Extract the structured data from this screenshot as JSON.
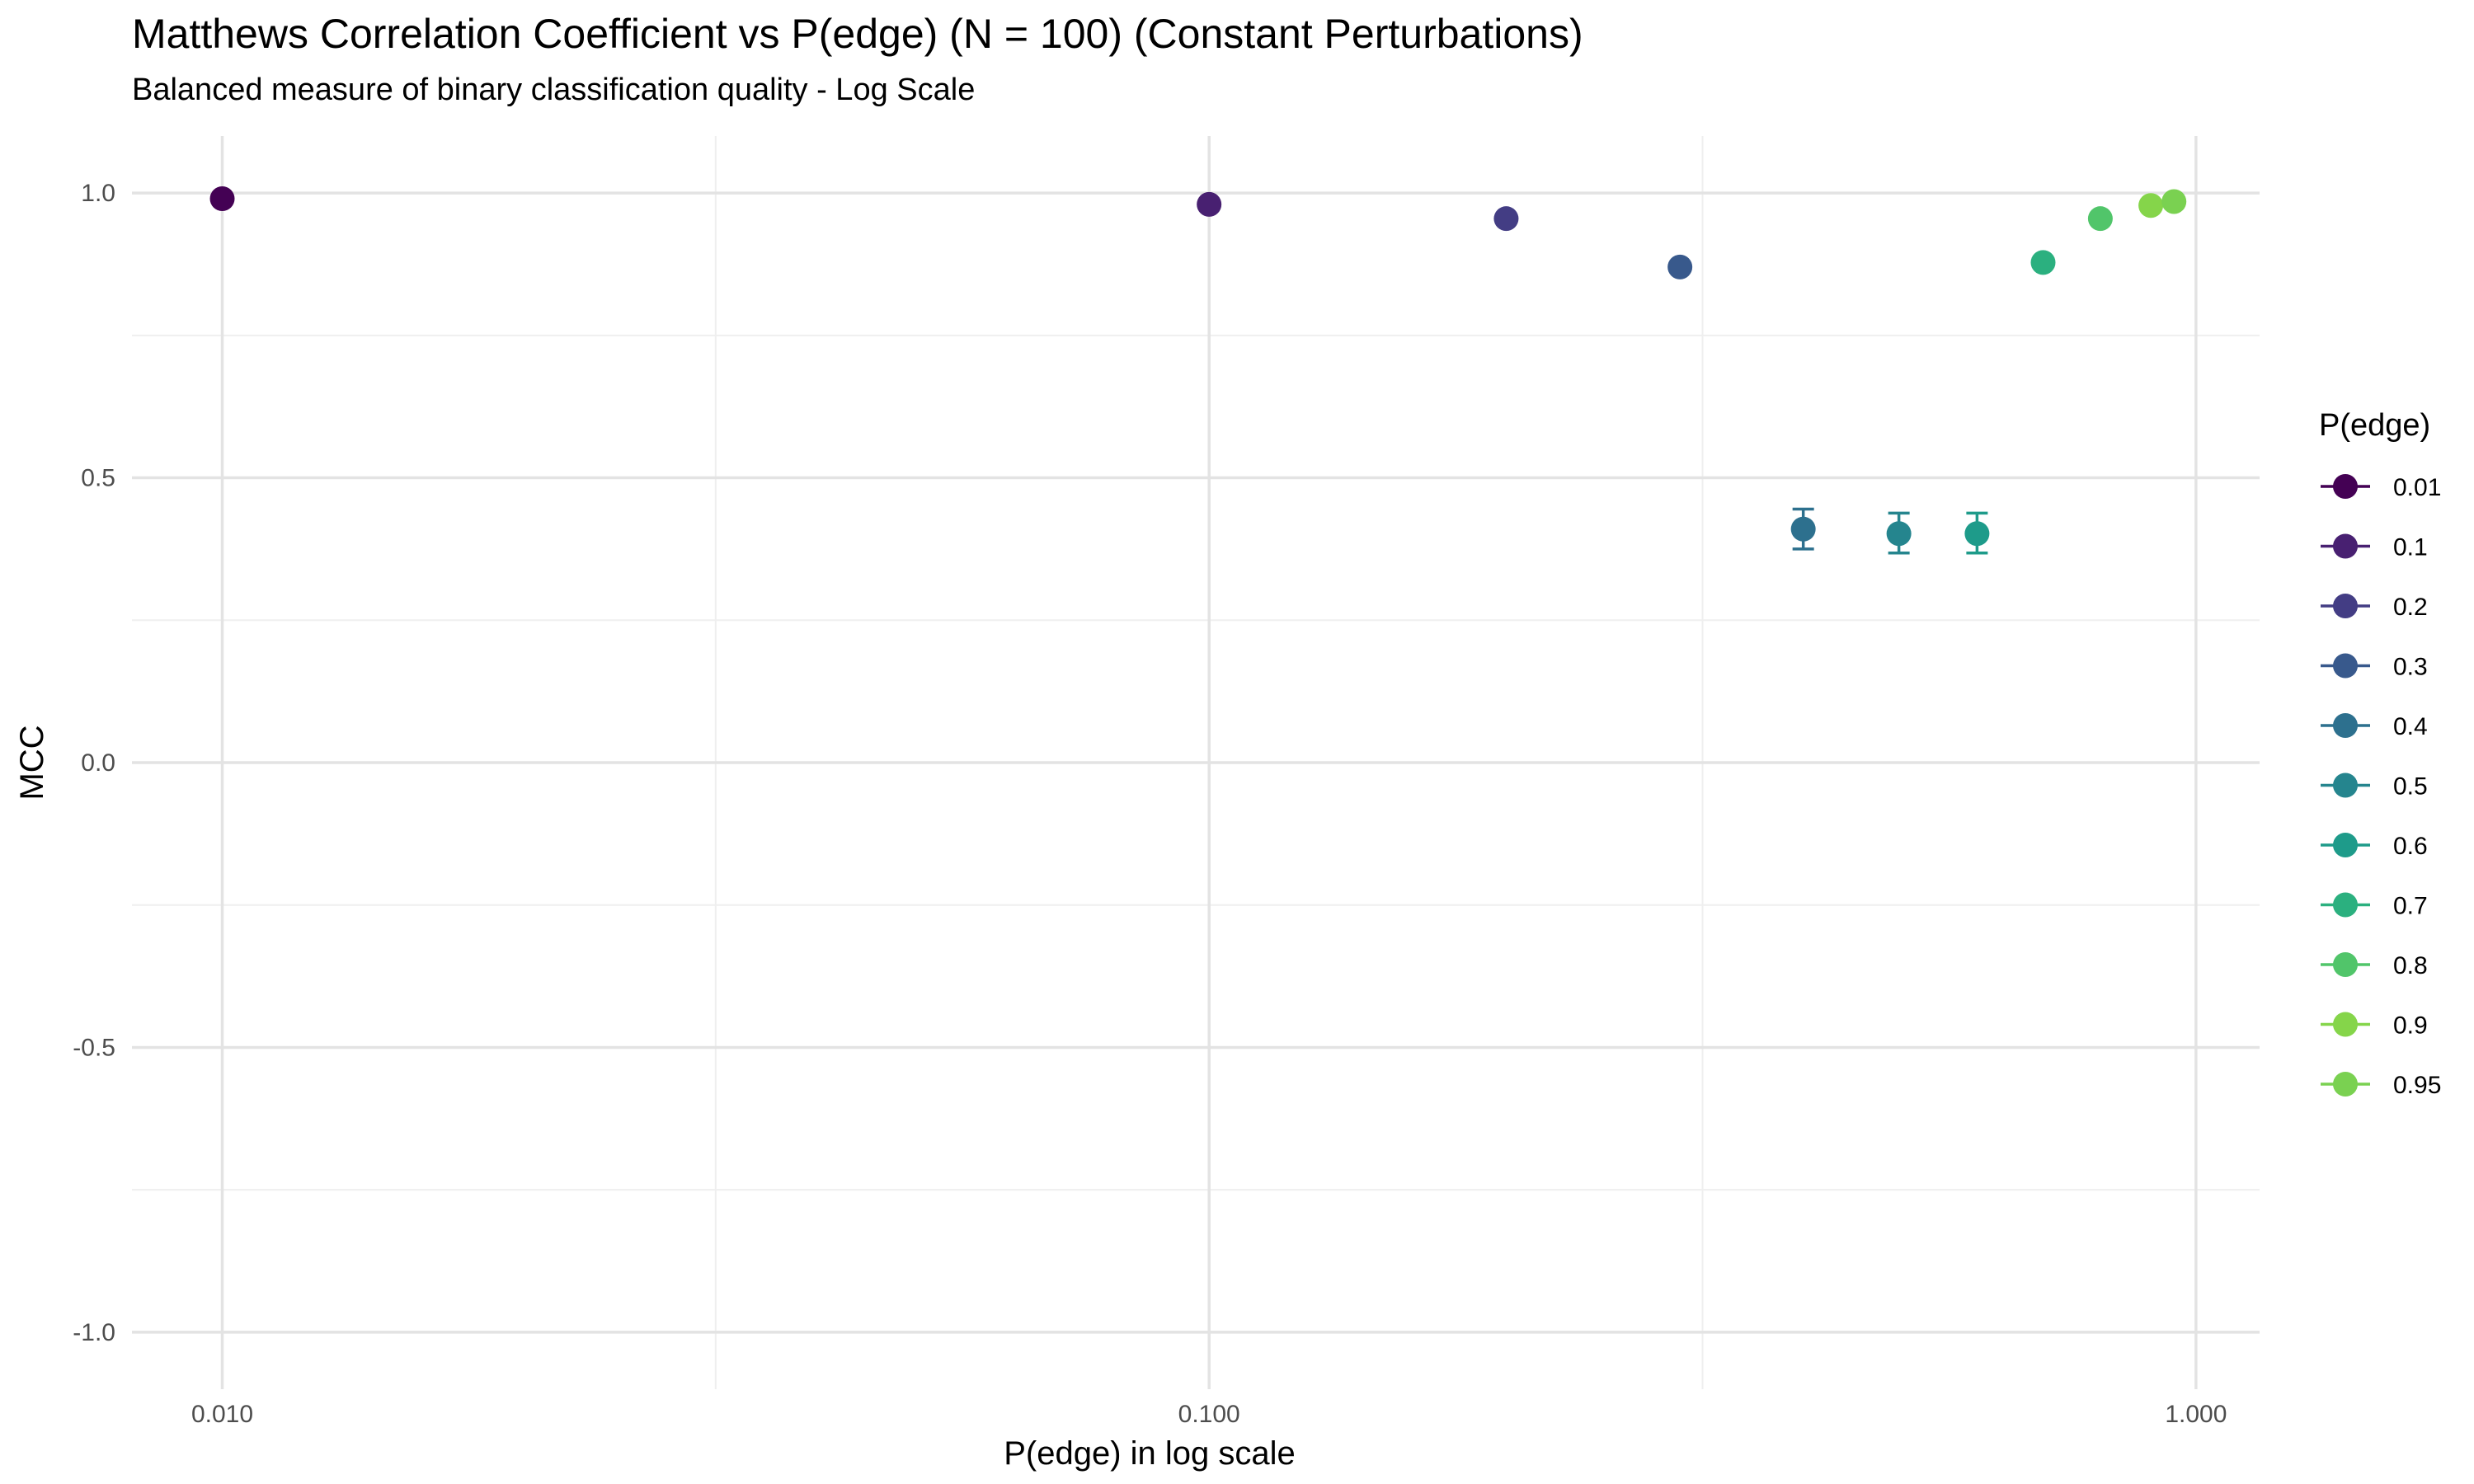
{
  "chart_data": {
    "type": "scatter",
    "title": "Matthews Correlation Coefficient vs P(edge) (N = 100) (Constant Perturbations)",
    "subtitle": "Balanced measure of binary classification quality - Log Scale",
    "xlabel": "P(edge) in log scale",
    "ylabel": "MCC",
    "x_scale": "log10",
    "xlim": [
      0.0081,
      1.16
    ],
    "ylim": [
      -1.1,
      1.1
    ],
    "x_ticks": [
      {
        "value": 0.01,
        "label": "0.010"
      },
      {
        "value": 0.1,
        "label": "0.100"
      },
      {
        "value": 1.0,
        "label": "1.000"
      }
    ],
    "y_ticks": [
      {
        "value": 1.0,
        "label": "1.0"
      },
      {
        "value": 0.5,
        "label": "0.5"
      },
      {
        "value": 0.0,
        "label": "0.0"
      },
      {
        "value": -0.5,
        "label": "-0.5"
      },
      {
        "value": -1.0,
        "label": "-1.0"
      }
    ],
    "grid": true,
    "legend": {
      "title": "P(edge)",
      "position": "right"
    },
    "series": [
      {
        "name": "0.01",
        "color": "#440154",
        "x": 0.01,
        "y": 0.99,
        "err_low": 0.99,
        "err_high": 0.99
      },
      {
        "name": "0.1",
        "color": "#482071",
        "x": 0.1,
        "y": 0.98,
        "err_low": 0.98,
        "err_high": 0.98
      },
      {
        "name": "0.2",
        "color": "#433D84",
        "x": 0.2,
        "y": 0.955,
        "err_low": 0.955,
        "err_high": 0.955
      },
      {
        "name": "0.3",
        "color": "#38598C",
        "x": 0.3,
        "y": 0.87,
        "err_low": 0.87,
        "err_high": 0.87
      },
      {
        "name": "0.4",
        "color": "#2D708E",
        "x": 0.4,
        "y": 0.41,
        "err_low": 0.375,
        "err_high": 0.445
      },
      {
        "name": "0.5",
        "color": "#25858E",
        "x": 0.5,
        "y": 0.402,
        "err_low": 0.368,
        "err_high": 0.438
      },
      {
        "name": "0.6",
        "color": "#1E9B8A",
        "x": 0.6,
        "y": 0.402,
        "err_low": 0.368,
        "err_high": 0.438
      },
      {
        "name": "0.7",
        "color": "#2BB07F",
        "x": 0.7,
        "y": 0.878,
        "err_low": 0.878,
        "err_high": 0.878
      },
      {
        "name": "0.8",
        "color": "#51C56A",
        "x": 0.8,
        "y": 0.955,
        "err_low": 0.955,
        "err_high": 0.955
      },
      {
        "name": "0.9",
        "color": "#85D54A",
        "x": 0.9,
        "y": 0.978,
        "err_low": 0.978,
        "err_high": 0.978
      },
      {
        "name": "0.95",
        "color": "#7AD151",
        "x": 0.95,
        "y": 0.985,
        "err_low": 0.985,
        "err_high": 0.985
      }
    ]
  }
}
